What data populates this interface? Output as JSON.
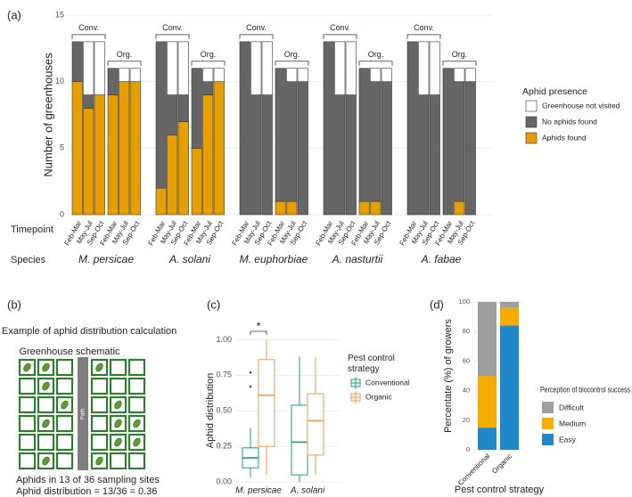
{
  "chart_data": [
    {
      "type": "stacked_bar",
      "panel_label": "(a)",
      "y_label": "Number of greenhouses",
      "ylim": [
        0,
        15
      ],
      "yticks": [
        0,
        5,
        10,
        15
      ],
      "grid": true,
      "species": [
        "M. persicae",
        "A. solani",
        "M. euphorbiae",
        "A. nasturtii",
        "A. fabae"
      ],
      "strategies": [
        "Conv.",
        "Org."
      ],
      "timepoints": [
        "Feb-Mar",
        "May-Jul",
        "Sep-Oct"
      ],
      "row_labels": [
        "Timepoint",
        "Species"
      ],
      "legend_title": "Aphid presence",
      "series": [
        {
          "name": "Aphids found",
          "color": "#E69F00",
          "values": [
            10,
            8,
            9,
            9,
            10,
            10,
            2,
            6,
            7,
            5,
            9,
            10,
            0,
            0,
            0,
            1,
            1,
            0,
            0,
            0,
            0,
            1,
            1,
            0,
            0,
            0,
            0,
            0,
            1,
            0
          ]
        },
        {
          "name": "No aphids found",
          "color": "#666666",
          "values": [
            3,
            1,
            0,
            2,
            0,
            0,
            11,
            3,
            2,
            6,
            1,
            0,
            13,
            9,
            9,
            10,
            9,
            10,
            13,
            9,
            9,
            10,
            9,
            10,
            13,
            9,
            9,
            11,
            9,
            10
          ]
        },
        {
          "name": "Greenhouse not visited",
          "color": "#ffffff",
          "values": [
            0,
            4,
            4,
            0,
            1,
            1,
            0,
            4,
            4,
            0,
            1,
            1,
            0,
            4,
            4,
            0,
            1,
            1,
            0,
            4,
            4,
            0,
            1,
            1,
            0,
            4,
            4,
            0,
            1,
            1
          ]
        }
      ]
    },
    {
      "type": "box",
      "panel_label": "(c)",
      "y_label": "Aphid distribution",
      "ylim": [
        -0.03,
        1.04
      ],
      "yticks": [
        {
          "value": 0,
          "label": "0.00"
        },
        {
          "value": 0.25,
          "label": "0.25"
        },
        {
          "value": 0.5,
          "label": "0.50"
        },
        {
          "value": 0.75,
          "label": "0.75"
        },
        {
          "value": 1,
          "label": "1.00"
        }
      ],
      "grid": true,
      "categories": [
        "M. persicae",
        "A. solani"
      ],
      "significance": "*",
      "legend_title": "Pest control strategy",
      "series": [
        {
          "name": "Conventional",
          "color": "#1b9e77",
          "whisker_low": [
            0.03,
            0.0
          ],
          "q1": [
            0.1,
            0.05
          ],
          "median": [
            0.17,
            0.28
          ],
          "q3": [
            0.24,
            0.54
          ],
          "whisker_high": [
            0.38,
            0.88
          ],
          "outliers": [
            [
              0.77,
              0.67
            ],
            []
          ]
        },
        {
          "name": "Organic",
          "color": "#f5954f",
          "whisker_low": [
            0.05,
            0.05
          ],
          "q1": [
            0.25,
            0.19
          ],
          "median": [
            0.61,
            0.43
          ],
          "q3": [
            0.86,
            0.62
          ],
          "whisker_high": [
            1.0,
            0.88
          ],
          "outliers": [
            [],
            []
          ]
        }
      ]
    },
    {
      "type": "stacked_bar_simple",
      "panel_label": "(d)",
      "y_label": "Percentate (%) of growers",
      "x_label": "Pest control strategy",
      "ylim": [
        0,
        100
      ],
      "yticks": [
        0,
        20,
        40,
        60,
        80,
        100
      ],
      "grid": true,
      "categories": [
        "Conventional",
        "Organic"
      ],
      "legend_title": "Perception of biocontrol success",
      "series": [
        {
          "name": "Easy",
          "color": "#1f88c9",
          "values": [
            15,
            84
          ]
        },
        {
          "name": "Medium",
          "color": "#f5ab00",
          "values": [
            35,
            12
          ]
        },
        {
          "name": "Difficult",
          "color": "#9e9e9e",
          "values": [
            50,
            4
          ]
        }
      ]
    }
  ],
  "diagram": {
    "panel_label": "(b)",
    "title": "Example of aphid distribution calculation",
    "schematic_title": "Greenhouse schematic",
    "path_label": "Path",
    "caption": [
      "Aphids in 13 of 36 sampling sites",
      "Aphid distribution = 13/36 = 0.36"
    ]
  }
}
